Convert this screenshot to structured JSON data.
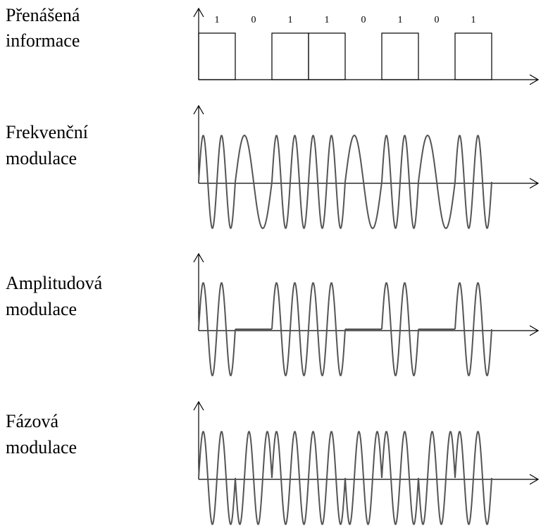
{
  "panels": [
    {
      "lines": [
        "Přenášená",
        "informace"
      ]
    },
    {
      "lines": [
        "Frekvenční",
        "modulace"
      ]
    },
    {
      "lines": [
        "Amplitudová",
        "modulace"
      ]
    },
    {
      "lines": [
        "Fázová",
        "modulace"
      ]
    }
  ],
  "bits": [
    1,
    0,
    1,
    1,
    0,
    1,
    0,
    1
  ]
}
